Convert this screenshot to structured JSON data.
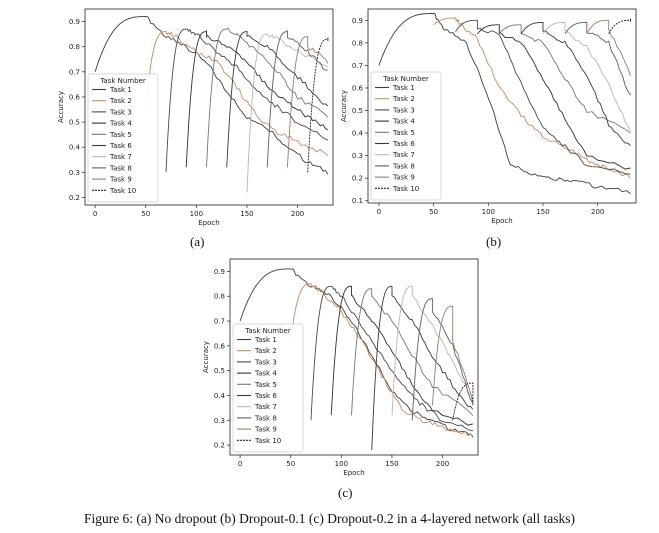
{
  "figure_caption": "Figure 6: (a) No dropout (b) Dropout-0.1 (c) Dropout-0.2 in a 4-layered network (all tasks)",
  "colors": [
    "#3d3d3d",
    "#c98a60",
    "#4b4b4b",
    "#2f2f2f",
    "#777777",
    "#3a3a3a",
    "#b7b7b7",
    "#5f5f5f",
    "#a07a60",
    "#222222"
  ],
  "chart_data": [
    {
      "panel_label": "(a)",
      "type": "line",
      "xlabel": "Epoch",
      "ylabel": "Accuracy",
      "xlim": [
        -10,
        235
      ],
      "ylim": [
        0.17,
        0.95
      ],
      "xticks": [
        0,
        50,
        100,
        150,
        200
      ],
      "yticks": [
        0.2,
        0.3,
        0.4,
        0.5,
        0.6,
        0.7,
        0.8,
        0.9
      ],
      "legend_title": "Task Number",
      "legend_position": "lower-left",
      "drop_floor": 0.3,
      "series": [
        {
          "name": "Task 1",
          "start": 0,
          "start_y": 0.7,
          "peak": 0.92,
          "points": [
            [
              70,
              0.84
            ],
            [
              90,
              0.8
            ],
            [
              110,
              0.74
            ],
            [
              130,
              0.62
            ],
            [
              150,
              0.52
            ],
            [
              170,
              0.48
            ],
            [
              190,
              0.4
            ],
            [
              210,
              0.34
            ],
            [
              230,
              0.3
            ]
          ]
        },
        {
          "name": "Task 2",
          "start": 50,
          "start_y": 0.55,
          "peak": 0.86,
          "points": [
            [
              80,
              0.84
            ],
            [
              100,
              0.78
            ],
            [
              120,
              0.74
            ],
            [
              140,
              0.64
            ],
            [
              160,
              0.52
            ],
            [
              180,
              0.46
            ],
            [
              200,
              0.42
            ],
            [
              230,
              0.37
            ]
          ]
        },
        {
          "name": "Task 3",
          "start": 70,
          "start_y": 0.3,
          "peak": 0.87,
          "points": [
            [
              100,
              0.85
            ],
            [
              120,
              0.78
            ],
            [
              140,
              0.72
            ],
            [
              160,
              0.62
            ],
            [
              180,
              0.56
            ],
            [
              200,
              0.5
            ],
            [
              230,
              0.43
            ]
          ]
        },
        {
          "name": "Task 4",
          "start": 90,
          "start_y": 0.32,
          "peak": 0.86,
          "points": [
            [
              110,
              0.84
            ],
            [
              130,
              0.8
            ],
            [
              150,
              0.74
            ],
            [
              170,
              0.64
            ],
            [
              190,
              0.58
            ],
            [
              210,
              0.52
            ],
            [
              230,
              0.47
            ]
          ]
        },
        {
          "name": "Task 5",
          "start": 110,
          "start_y": 0.32,
          "peak": 0.87,
          "points": [
            [
              140,
              0.85
            ],
            [
              160,
              0.78
            ],
            [
              180,
              0.7
            ],
            [
              200,
              0.6
            ],
            [
              230,
              0.52
            ]
          ]
        },
        {
          "name": "Task 6",
          "start": 130,
          "start_y": 0.32,
          "peak": 0.86,
          "points": [
            [
              150,
              0.84
            ],
            [
              170,
              0.8
            ],
            [
              190,
              0.72
            ],
            [
              210,
              0.64
            ],
            [
              230,
              0.56
            ]
          ]
        },
        {
          "name": "Task 7",
          "start": 150,
          "start_y": 0.22,
          "peak": 0.85,
          "points": [
            [
              180,
              0.83
            ],
            [
              200,
              0.78
            ],
            [
              230,
              0.72
            ]
          ]
        },
        {
          "name": "Task 8",
          "start": 170,
          "start_y": 0.32,
          "peak": 0.86,
          "points": [
            [
              190,
              0.84
            ],
            [
              210,
              0.78
            ],
            [
              230,
              0.7
            ]
          ]
        },
        {
          "name": "Task 9",
          "start": 190,
          "start_y": 0.32,
          "peak": 0.84,
          "points": [
            [
              210,
              0.8
            ],
            [
              230,
              0.74
            ]
          ]
        },
        {
          "name": "Task 10",
          "start": 210,
          "start_y": 0.3,
          "peak": 0.83,
          "points": [
            [
              230,
              0.83
            ]
          ]
        }
      ]
    },
    {
      "panel_label": "(b)",
      "type": "line",
      "xlabel": "Epoch",
      "ylabel": "Accuracy",
      "xlim": [
        -10,
        235
      ],
      "ylim": [
        0.09,
        0.95
      ],
      "xticks": [
        0,
        50,
        100,
        150,
        200
      ],
      "yticks": [
        0.1,
        0.2,
        0.3,
        0.4,
        0.5,
        0.6,
        0.7,
        0.8,
        0.9
      ],
      "legend_title": "Task Number",
      "legend_position": "lower-left",
      "drop_floor": 0.12,
      "series": [
        {
          "name": "Task 1",
          "start": 0,
          "start_y": 0.7,
          "peak": 0.93,
          "points": [
            [
              60,
              0.86
            ],
            [
              80,
              0.8
            ],
            [
              100,
              0.56
            ],
            [
              120,
              0.26
            ],
            [
              140,
              0.22
            ],
            [
              160,
              0.2
            ],
            [
              180,
              0.19
            ],
            [
              200,
              0.16
            ],
            [
              230,
              0.14
            ]
          ]
        },
        {
          "name": "Task 2",
          "start": 50,
          "start_y": 0.88,
          "peak": 0.91,
          "points": [
            [
              75,
              0.88
            ],
            [
              90,
              0.82
            ],
            [
              110,
              0.6
            ],
            [
              130,
              0.48
            ],
            [
              150,
              0.38
            ],
            [
              170,
              0.34
            ],
            [
              190,
              0.28
            ],
            [
              210,
              0.24
            ],
            [
              230,
              0.2
            ]
          ]
        },
        {
          "name": "Task 3",
          "start": 70,
          "start_y": 0.85,
          "peak": 0.9,
          "points": [
            [
              90,
              0.86
            ],
            [
              110,
              0.84
            ],
            [
              130,
              0.62
            ],
            [
              150,
              0.42
            ],
            [
              170,
              0.34
            ],
            [
              190,
              0.26
            ],
            [
              230,
              0.22
            ]
          ]
        },
        {
          "name": "Task 4",
          "start": 90,
          "start_y": 0.84,
          "peak": 0.88,
          "points": [
            [
              110,
              0.84
            ],
            [
              130,
              0.8
            ],
            [
              150,
              0.64
            ],
            [
              170,
              0.46
            ],
            [
              190,
              0.3
            ],
            [
              230,
              0.24
            ]
          ]
        },
        {
          "name": "Task 5",
          "start": 110,
          "start_y": 0.84,
          "peak": 0.88,
          "points": [
            [
              130,
              0.84
            ],
            [
              150,
              0.8
            ],
            [
              170,
              0.64
            ],
            [
              190,
              0.5
            ],
            [
              230,
              0.4
            ]
          ]
        },
        {
          "name": "Task 6",
          "start": 130,
          "start_y": 0.84,
          "peak": 0.89,
          "points": [
            [
              150,
              0.85
            ],
            [
              170,
              0.8
            ],
            [
              190,
              0.66
            ],
            [
              210,
              0.44
            ],
            [
              230,
              0.34
            ]
          ]
        },
        {
          "name": "Task 7",
          "start": 150,
          "start_y": 0.84,
          "peak": 0.89,
          "points": [
            [
              170,
              0.85
            ],
            [
              190,
              0.78
            ],
            [
              210,
              0.62
            ],
            [
              230,
              0.4
            ]
          ]
        },
        {
          "name": "Task 8",
          "start": 170,
          "start_y": 0.84,
          "peak": 0.89,
          "points": [
            [
              190,
              0.85
            ],
            [
              210,
              0.8
            ],
            [
              230,
              0.56
            ]
          ]
        },
        {
          "name": "Task 9",
          "start": 190,
          "start_y": 0.84,
          "peak": 0.9,
          "points": [
            [
              210,
              0.86
            ],
            [
              230,
              0.66
            ]
          ]
        },
        {
          "name": "Task 10",
          "start": 210,
          "start_y": 0.84,
          "peak": 0.9,
          "points": [
            [
              230,
              0.9
            ]
          ]
        }
      ]
    },
    {
      "panel_label": "(c)",
      "type": "line",
      "xlabel": "Epoch",
      "ylabel": "Accuracy",
      "xlim": [
        -10,
        235
      ],
      "ylim": [
        0.16,
        0.95
      ],
      "xticks": [
        0,
        50,
        100,
        150,
        200
      ],
      "yticks": [
        0.2,
        0.3,
        0.4,
        0.5,
        0.6,
        0.7,
        0.8,
        0.9
      ],
      "legend_title": "Task Number",
      "legend_position": "lower-left",
      "drop_floor": 0.3,
      "series": [
        {
          "name": "Task 1",
          "start": 0,
          "start_y": 0.7,
          "peak": 0.91,
          "points": [
            [
              70,
              0.84
            ],
            [
              90,
              0.8
            ],
            [
              110,
              0.7
            ],
            [
              130,
              0.56
            ],
            [
              150,
              0.42
            ],
            [
              170,
              0.34
            ],
            [
              190,
              0.3
            ],
            [
              210,
              0.26
            ],
            [
              230,
              0.24
            ]
          ]
        },
        {
          "name": "Task 2",
          "start": 50,
          "start_y": 0.62,
          "peak": 0.85,
          "points": [
            [
              80,
              0.82
            ],
            [
              100,
              0.74
            ],
            [
              120,
              0.62
            ],
            [
              140,
              0.48
            ],
            [
              160,
              0.34
            ],
            [
              180,
              0.3
            ],
            [
              200,
              0.27
            ],
            [
              230,
              0.24
            ]
          ]
        },
        {
          "name": "Task 3",
          "start": 70,
          "start_y": 0.3,
          "peak": 0.84,
          "points": [
            [
              100,
              0.8
            ],
            [
              120,
              0.68
            ],
            [
              140,
              0.56
            ],
            [
              160,
              0.44
            ],
            [
              180,
              0.36
            ],
            [
              200,
              0.3
            ],
            [
              230,
              0.26
            ]
          ]
        },
        {
          "name": "Task 4",
          "start": 90,
          "start_y": 0.32,
          "peak": 0.84,
          "points": [
            [
              110,
              0.8
            ],
            [
              130,
              0.7
            ],
            [
              150,
              0.58
            ],
            [
              170,
              0.44
            ],
            [
              190,
              0.34
            ],
            [
              230,
              0.28
            ]
          ]
        },
        {
          "name": "Task 5",
          "start": 110,
          "start_y": 0.32,
          "peak": 0.83,
          "points": [
            [
              130,
              0.8
            ],
            [
              150,
              0.7
            ],
            [
              170,
              0.56
            ],
            [
              190,
              0.44
            ],
            [
              230,
              0.32
            ]
          ]
        },
        {
          "name": "Task 6",
          "start": 130,
          "start_y": 0.18,
          "peak": 0.84,
          "points": [
            [
              150,
              0.8
            ],
            [
              170,
              0.7
            ],
            [
              190,
              0.56
            ],
            [
              210,
              0.44
            ],
            [
              230,
              0.34
            ]
          ]
        },
        {
          "name": "Task 7",
          "start": 150,
          "start_y": 0.32,
          "peak": 0.84,
          "points": [
            [
              170,
              0.8
            ],
            [
              190,
              0.68
            ],
            [
              210,
              0.54
            ],
            [
              230,
              0.38
            ]
          ]
        },
        {
          "name": "Task 8",
          "start": 170,
          "start_y": 0.3,
          "peak": 0.79,
          "points": [
            [
              190,
              0.74
            ],
            [
              210,
              0.6
            ],
            [
              230,
              0.36
            ]
          ]
        },
        {
          "name": "Task 9",
          "start": 190,
          "start_y": 0.36,
          "peak": 0.76,
          "points": [
            [
              210,
              0.62
            ],
            [
              230,
              0.38
            ]
          ]
        },
        {
          "name": "Task 10",
          "start": 210,
          "start_y": 0.3,
          "peak": 0.45,
          "points": [
            [
              230,
              0.36
            ]
          ]
        }
      ]
    }
  ]
}
